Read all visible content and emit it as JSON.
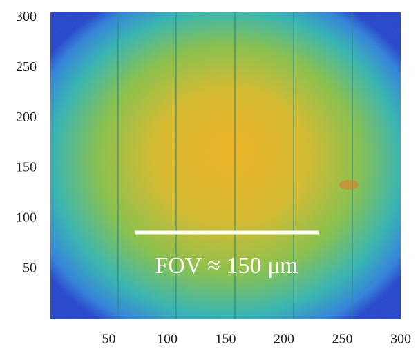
{
  "chart_data": {
    "type": "heatmap",
    "annotation": "FOV ≈ 150 μm",
    "xlim": [
      0,
      300
    ],
    "xticks": [
      50,
      100,
      150,
      200,
      250,
      300
    ],
    "ylim": [
      0,
      305
    ],
    "yticks": [
      50,
      100,
      150,
      200,
      250,
      300
    ]
  }
}
